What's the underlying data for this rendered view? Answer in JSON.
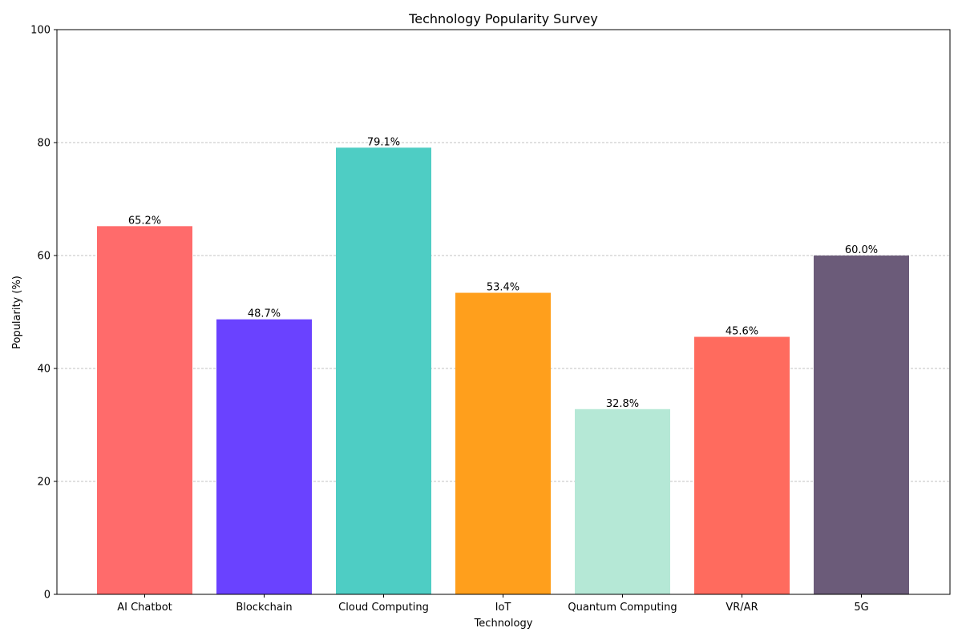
{
  "chart_data": {
    "type": "bar",
    "title": "Technology Popularity Survey",
    "xlabel": "Technology",
    "ylabel": "Popularity (%)",
    "categories": [
      "AI Chatbot",
      "Blockchain",
      "Cloud Computing",
      "IoT",
      "Quantum Computing",
      "VR/AR",
      "5G"
    ],
    "values": [
      65.2,
      48.7,
      79.1,
      53.4,
      32.8,
      45.6,
      60.0
    ],
    "value_labels": [
      "65.2%",
      "48.7%",
      "79.1%",
      "53.4%",
      "32.8%",
      "45.6%",
      "60.0%"
    ],
    "colors": [
      "#ff6b6b",
      "#6a42ff",
      "#4ecdc4",
      "#ff9f1c",
      "#b5e8d6",
      "#ff6b5e",
      "#6b5b79"
    ],
    "ylim": [
      0,
      100
    ],
    "yticks": [
      0,
      20,
      40,
      60,
      80,
      100
    ],
    "grid": "y-dashed",
    "legend": "none"
  }
}
